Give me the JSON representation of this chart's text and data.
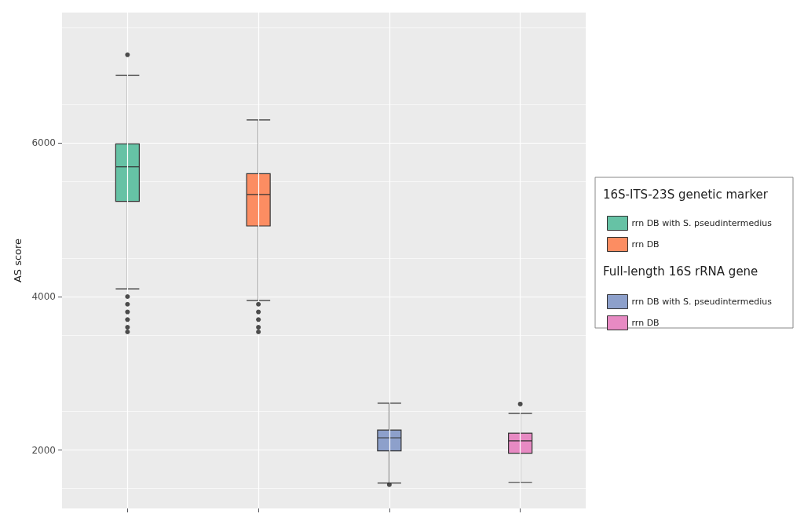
{
  "chart_data": {
    "type": "box",
    "ylabel": "AS score",
    "legend_title": "16S-ITS-23S genetic marker",
    "annotations": [
      "Full-length 16S rRNA gene"
    ],
    "categories": [
      null,
      null,
      null,
      null
    ],
    "ylim": [
      1240,
      7700
    ],
    "yticks": [
      2000,
      4000,
      6000
    ],
    "grid": true,
    "legend": "right",
    "series": [
      {
        "name": "rrn DB with S. pseudintermedius",
        "color": "#66c2a5",
        "boxes": [
          {
            "low": 4100,
            "q1": 5240,
            "median": 5690,
            "q3": 5990,
            "high": 6880,
            "outliers": [
              7150,
              4000,
              3900,
              3800,
              3700,
              3600,
              3540
            ]
          },
          null,
          null,
          null
        ]
      },
      {
        "name": "rrn DB",
        "color": "#fc8d62",
        "boxes": [
          null,
          {
            "low": 3950,
            "q1": 4920,
            "median": 5330,
            "q3": 5600,
            "high": 6300,
            "outliers": [
              3900,
              3800,
              3700,
              3600,
              3540
            ]
          },
          null,
          null
        ]
      },
      {
        "name": "rrn DB with S. pseudintermedius",
        "color": "#8da0cb",
        "boxes": [
          null,
          null,
          {
            "low": 1570,
            "q1": 1990,
            "median": 2160,
            "q3": 2260,
            "high": 2610,
            "outliers": [
              1550
            ]
          },
          null
        ]
      },
      {
        "name": "rrn DB",
        "color": "#e78ac3",
        "boxes": [
          null,
          null,
          null,
          {
            "low": 1580,
            "q1": 1960,
            "median": 2120,
            "q3": 2220,
            "high": 2480,
            "outliers": [
              2600
            ]
          }
        ]
      }
    ]
  }
}
